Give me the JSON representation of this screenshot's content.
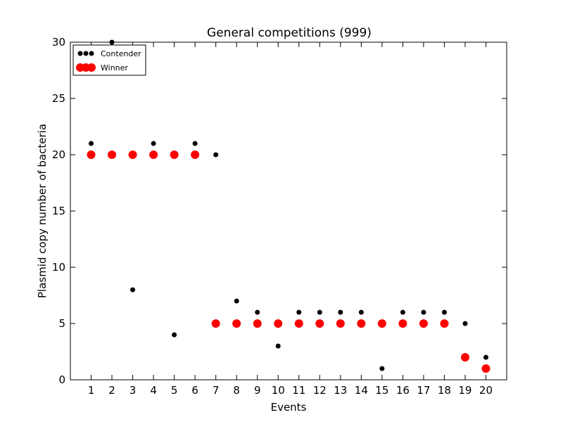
{
  "chart_data": {
    "type": "scatter",
    "title": "General competitions (999)",
    "xlabel": "Events",
    "ylabel": "Plasmid copy number of bacteria",
    "xlim": [
      0,
      21
    ],
    "ylim": [
      0,
      30
    ],
    "xticks": [
      1,
      2,
      3,
      4,
      5,
      6,
      7,
      8,
      9,
      10,
      11,
      12,
      13,
      14,
      15,
      16,
      17,
      18,
      19,
      20
    ],
    "yticks": [
      0,
      5,
      10,
      15,
      20,
      25,
      30
    ],
    "grid": false,
    "legend_position": "top-left",
    "series": [
      {
        "name": "Contender",
        "color": "#000000",
        "marker": "small-dot",
        "points": [
          [
            1,
            21
          ],
          [
            2,
            30
          ],
          [
            3,
            8
          ],
          [
            4,
            21
          ],
          [
            5,
            4
          ],
          [
            6,
            21
          ],
          [
            7,
            20
          ],
          [
            8,
            7
          ],
          [
            9,
            6
          ],
          [
            10,
            3
          ],
          [
            11,
            6
          ],
          [
            12,
            6
          ],
          [
            13,
            6
          ],
          [
            14,
            6
          ],
          [
            15,
            1
          ],
          [
            16,
            6
          ],
          [
            17,
            6
          ],
          [
            18,
            6
          ],
          [
            19,
            5
          ],
          [
            20,
            2
          ]
        ]
      },
      {
        "name": "Winner",
        "color": "#ff0000",
        "marker": "large-dot",
        "points": [
          [
            1,
            20
          ],
          [
            2,
            20
          ],
          [
            3,
            20
          ],
          [
            4,
            20
          ],
          [
            5,
            20
          ],
          [
            6,
            20
          ],
          [
            7,
            5
          ],
          [
            8,
            5
          ],
          [
            9,
            5
          ],
          [
            10,
            5
          ],
          [
            11,
            5
          ],
          [
            12,
            5
          ],
          [
            13,
            5
          ],
          [
            14,
            5
          ],
          [
            15,
            5
          ],
          [
            16,
            5
          ],
          [
            17,
            5
          ],
          [
            18,
            5
          ],
          [
            19,
            2
          ],
          [
            20,
            1
          ]
        ]
      }
    ]
  }
}
